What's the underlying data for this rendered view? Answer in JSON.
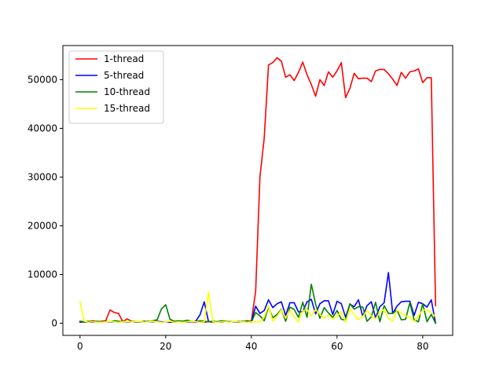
{
  "chart_data": {
    "type": "line",
    "title": "",
    "xlabel": "",
    "ylabel": "",
    "xlim": [
      -4,
      87
    ],
    "ylim": [
      -2500,
      57000
    ],
    "xticks": [
      0,
      20,
      40,
      60,
      80
    ],
    "yticks": [
      0,
      10000,
      20000,
      30000,
      40000,
      50000
    ],
    "legend_position": "upper-left",
    "grid": false,
    "series": [
      {
        "name": "1-thread",
        "color": "#ff0000",
        "values": [
          300,
          200,
          300,
          500,
          300,
          400,
          500,
          2700,
          2200,
          2000,
          300,
          900,
          400,
          300,
          300,
          400,
          300,
          300,
          400,
          200,
          300,
          200,
          200,
          300,
          300,
          200,
          300,
          200,
          300,
          200,
          300,
          200,
          300,
          200,
          300,
          300,
          300,
          200,
          300,
          500,
          400,
          6500,
          30000,
          38000,
          53000,
          53500,
          54500,
          53800,
          50500,
          51000,
          49800,
          51500,
          53600,
          51000,
          49000,
          46600,
          50000,
          48800,
          51600,
          50500,
          51800,
          53500,
          46300,
          48200,
          51300,
          50200,
          50300,
          50300,
          49600,
          51800,
          52100,
          52100,
          51200,
          50100,
          48800,
          51500,
          50300,
          51600,
          51800,
          52200,
          49400,
          50400,
          50400,
          3600
        ]
      },
      {
        "name": "5-thread",
        "color": "#0000ff",
        "values": [
          200,
          300,
          200,
          200,
          300,
          200,
          400,
          300,
          300,
          200,
          400,
          300,
          300,
          200,
          300,
          300,
          400,
          300,
          400,
          300,
          300,
          200,
          300,
          300,
          400,
          300,
          300,
          400,
          1700,
          4400,
          300,
          400,
          300,
          300,
          300,
          300,
          300,
          300,
          400,
          300,
          300,
          3500,
          2000,
          2600,
          4800,
          3200,
          4000,
          4400,
          1600,
          4200,
          4200,
          2300,
          2400,
          4400,
          4900,
          1900,
          4000,
          4600,
          4600,
          1800,
          4500,
          4000,
          1200,
          3900,
          3400,
          4800,
          1400,
          3600,
          4400,
          1100,
          3400,
          4200,
          10400,
          2000,
          3500,
          4400,
          4500,
          4500,
          1600,
          4300,
          4000,
          3300,
          4800,
          0
        ]
      },
      {
        "name": "10-thread",
        "color": "#008000",
        "values": [
          400,
          300,
          400,
          300,
          400,
          300,
          300,
          300,
          500,
          400,
          300,
          300,
          400,
          300,
          300,
          400,
          300,
          500,
          700,
          2900,
          3800,
          800,
          400,
          500,
          400,
          600,
          400,
          300,
          500,
          400,
          300,
          400,
          300,
          500,
          400,
          300,
          300,
          400,
          300,
          500,
          200,
          2200,
          1500,
          500,
          3300,
          1100,
          1800,
          2900,
          400,
          3300,
          2800,
          1200,
          4300,
          1200,
          8000,
          3900,
          1000,
          3200,
          2100,
          1200,
          2600,
          800,
          600,
          4000,
          2900,
          3400,
          3300,
          400,
          1300,
          4300,
          300,
          3600,
          2000,
          2000,
          2700,
          700,
          800,
          4200,
          700,
          300,
          4000,
          300,
          1800,
          0
        ]
      },
      {
        "name": "15-thread",
        "color": "#ffff00",
        "values": [
          4400,
          400,
          200,
          300,
          200,
          200,
          300,
          400,
          300,
          200,
          300,
          400,
          300,
          300,
          400,
          200,
          300,
          400,
          300,
          200,
          300,
          400,
          200,
          300,
          200,
          300,
          400,
          300,
          200,
          300,
          6400,
          300,
          200,
          300,
          300,
          200,
          400,
          300,
          300,
          200,
          300,
          300,
          200,
          1200,
          3600,
          400,
          1400,
          2800,
          1000,
          2700,
          1200,
          300,
          2600,
          2800,
          1500,
          2800,
          1800,
          1000,
          1700,
          900,
          1300,
          2400,
          200,
          3000,
          1800,
          700,
          1400,
          2600,
          1500,
          900,
          2300,
          2800,
          1000,
          400,
          2700,
          2100,
          1500,
          1200,
          400,
          1500,
          2700,
          2700,
          2200,
          1300
        ]
      }
    ]
  }
}
